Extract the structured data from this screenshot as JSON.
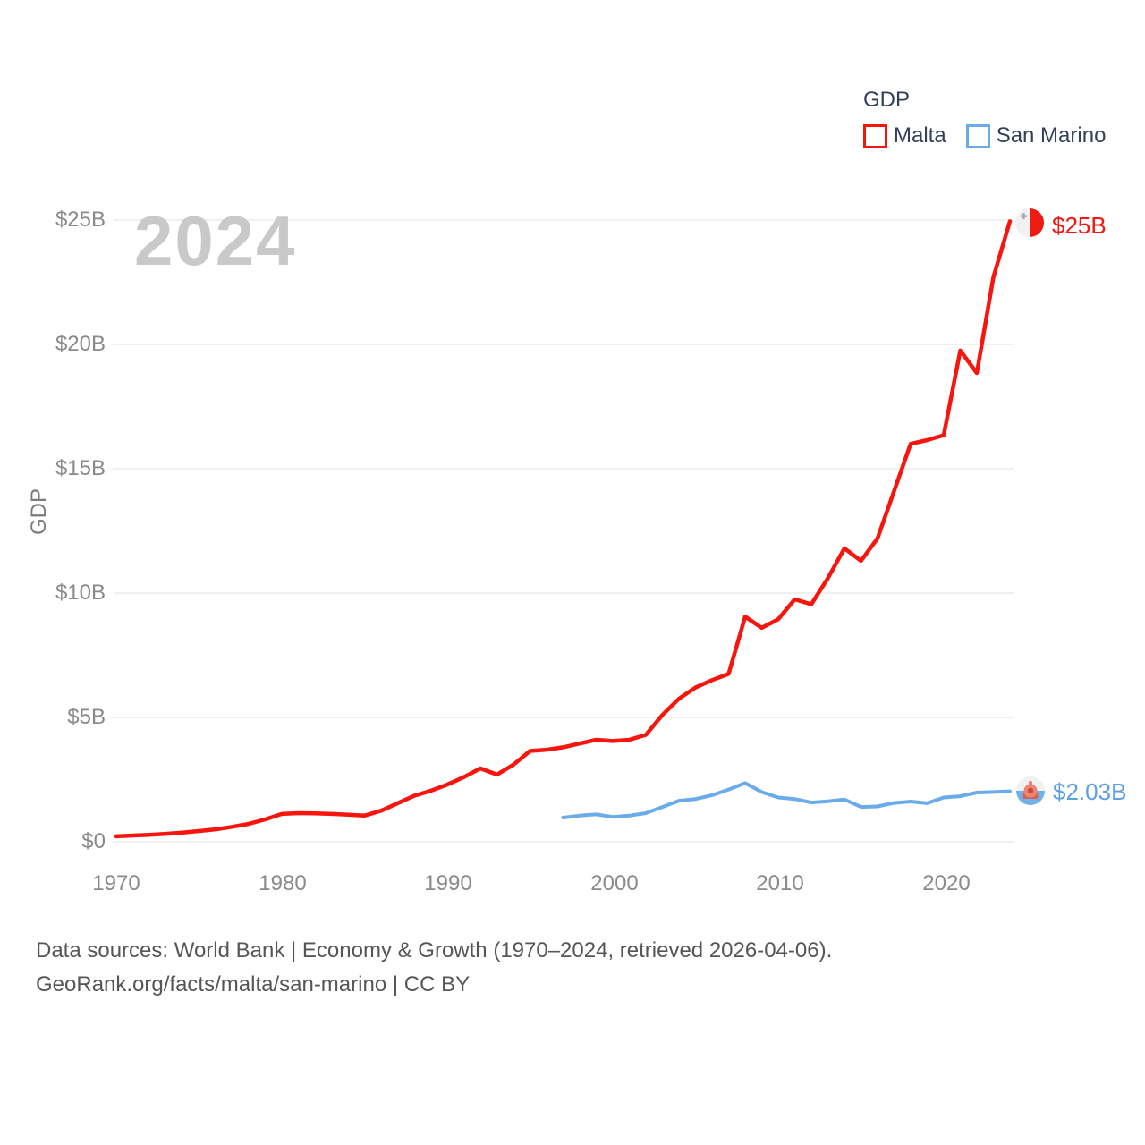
{
  "watermark": "2024",
  "legend": {
    "title": "GDP",
    "items": [
      {
        "label": "Malta",
        "color": "#f7150d"
      },
      {
        "label": "San Marino",
        "color": "#74b0ec"
      }
    ]
  },
  "y_axis": {
    "title": "GDP",
    "ticks": [
      "$25B",
      "$20B",
      "$15B",
      "$10B",
      "$5B",
      "$0"
    ]
  },
  "x_axis": {
    "ticks": [
      "1970",
      "1980",
      "1990",
      "2000",
      "2010",
      "2020"
    ]
  },
  "end_labels": {
    "malta": "$25B",
    "san_marino": "$2.03B"
  },
  "footer": {
    "line1": "Data sources: World Bank | Economy & Growth (1970–2024, retrieved 2026-04-06).",
    "line2": "GeoRank.org/facts/malta/san-marino | CC BY"
  },
  "chart_data": {
    "type": "line",
    "title": "GDP",
    "ylabel": "GDP",
    "xlabel": "",
    "xlim": [
      1970,
      2024
    ],
    "ylim": [
      0,
      25
    ],
    "y_unit": "billion USD",
    "y_gridlines": [
      0,
      5,
      10,
      15,
      20,
      25
    ],
    "grid": "horizontal",
    "legend_position": "top-right",
    "series": [
      {
        "name": "Malta",
        "color": "#f7150d",
        "end_value_label": "$25B",
        "x": [
          1970,
          1971,
          1972,
          1973,
          1974,
          1975,
          1976,
          1977,
          1978,
          1979,
          1980,
          1981,
          1982,
          1983,
          1984,
          1985,
          1986,
          1987,
          1988,
          1989,
          1990,
          1991,
          1992,
          1993,
          1994,
          1995,
          1996,
          1997,
          1998,
          1999,
          2000,
          2001,
          2002,
          2003,
          2004,
          2005,
          2006,
          2007,
          2008,
          2009,
          2010,
          2011,
          2012,
          2013,
          2014,
          2015,
          2016,
          2017,
          2018,
          2019,
          2020,
          2021,
          2022,
          2023,
          2024
        ],
        "y": [
          0.22,
          0.25,
          0.28,
          0.32,
          0.37,
          0.43,
          0.5,
          0.6,
          0.72,
          0.9,
          1.12,
          1.15,
          1.14,
          1.12,
          1.09,
          1.05,
          1.25,
          1.55,
          1.85,
          2.05,
          2.3,
          2.6,
          2.95,
          2.7,
          3.1,
          3.65,
          3.7,
          3.8,
          3.95,
          4.1,
          4.05,
          4.1,
          4.3,
          5.1,
          5.75,
          6.2,
          6.5,
          6.75,
          9.05,
          8.6,
          8.95,
          9.75,
          9.55,
          10.6,
          11.8,
          11.3,
          12.2,
          14.1,
          16.0,
          16.15,
          16.35,
          19.75,
          18.85,
          22.7,
          24.95
        ]
      },
      {
        "name": "San Marino",
        "color": "#6aabe9",
        "end_value_label": "$2.03B",
        "x": [
          1997,
          1998,
          1999,
          2000,
          2001,
          2002,
          2003,
          2004,
          2005,
          2006,
          2007,
          2008,
          2009,
          2010,
          2011,
          2012,
          2013,
          2014,
          2015,
          2016,
          2017,
          2018,
          2019,
          2020,
          2021,
          2022,
          2023,
          2024
        ],
        "y": [
          0.97,
          1.05,
          1.1,
          1.0,
          1.05,
          1.15,
          1.4,
          1.65,
          1.72,
          1.87,
          2.1,
          2.36,
          2.0,
          1.78,
          1.72,
          1.58,
          1.63,
          1.7,
          1.4,
          1.42,
          1.56,
          1.62,
          1.55,
          1.78,
          1.83,
          1.98,
          2.0,
          2.03
        ]
      }
    ]
  }
}
